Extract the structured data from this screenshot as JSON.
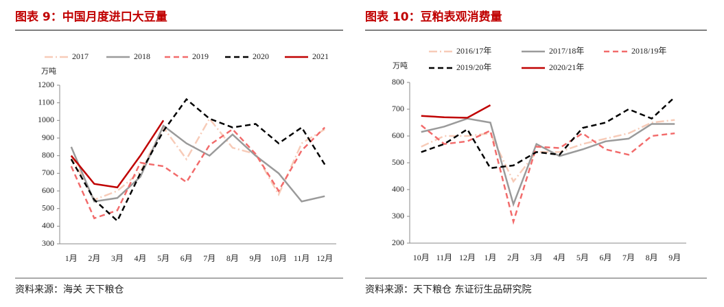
{
  "chart_data": [
    {
      "type": "line",
      "title": "图表 9：中国月度进口大豆量",
      "y_label": "万吨",
      "source": "资料来源：海关 天下粮仓",
      "categories": [
        "1月",
        "2月",
        "3月",
        "4月",
        "5月",
        "6月",
        "7月",
        "8月",
        "9月",
        "10月",
        "11月",
        "12月"
      ],
      "ylim": [
        300,
        1200
      ],
      "yticks": [
        300,
        400,
        500,
        600,
        700,
        800,
        900,
        1000,
        1100,
        1200
      ],
      "series": [
        {
          "name": "2017",
          "color": "#f7cbb8",
          "line_style": "dash-dot",
          "values": [
            800,
            550,
            600,
            710,
            960,
            780,
            1010,
            845,
            810,
            580,
            870,
            950
          ]
        },
        {
          "name": "2018",
          "color": "#9a9a9a",
          "line_style": "solid",
          "values": [
            850,
            540,
            560,
            680,
            970,
            870,
            800,
            920,
            800,
            700,
            540,
            570
          ]
        },
        {
          "name": "2019",
          "color": "#f26b6b",
          "line_style": "dash",
          "values": [
            740,
            445,
            490,
            760,
            740,
            650,
            860,
            950,
            810,
            600,
            830,
            960
          ]
        },
        {
          "name": "2020",
          "color": "#000000",
          "line_style": "dash",
          "values": [
            780,
            550,
            430,
            700,
            940,
            1120,
            1010,
            960,
            980,
            870,
            960,
            750
          ]
        },
        {
          "name": "2021",
          "color": "#c00000",
          "line_style": "solid",
          "values": [
            800,
            640,
            620,
            800,
            1000,
            null,
            null,
            null,
            null,
            null,
            null,
            null
          ]
        }
      ]
    },
    {
      "type": "line",
      "title": "图表 10：豆粕表观消费量",
      "y_label": "万吨",
      "source": "资料来源：天下粮仓 东证衍生品研究院",
      "categories": [
        "10月",
        "11月",
        "12月",
        "1月",
        "2月",
        "3月",
        "4月",
        "5月",
        "6月",
        "7月",
        "8月",
        "9月"
      ],
      "ylim": [
        200,
        800
      ],
      "yticks": [
        200,
        300,
        400,
        500,
        600,
        700,
        800
      ],
      "series": [
        {
          "name": "2016/17年",
          "color": "#f7cbb8",
          "line_style": "dash-dot",
          "values": [
            560,
            600,
            600,
            610,
            430,
            540,
            540,
            570,
            590,
            610,
            650,
            660
          ]
        },
        {
          "name": "2017/18年",
          "color": "#9a9a9a",
          "line_style": "solid",
          "values": [
            615,
            635,
            665,
            650,
            345,
            570,
            525,
            550,
            580,
            590,
            645,
            645
          ]
        },
        {
          "name": "2018/19年",
          "color": "#f26b6b",
          "line_style": "dash",
          "values": [
            640,
            570,
            580,
            620,
            280,
            560,
            555,
            610,
            550,
            530,
            600,
            610
          ]
        },
        {
          "name": "2019/20年",
          "color": "#000000",
          "line_style": "dash",
          "values": [
            540,
            570,
            625,
            480,
            490,
            540,
            530,
            630,
            650,
            700,
            665,
            745
          ]
        },
        {
          "name": "2020/21年",
          "color": "#c00000",
          "line_style": "solid",
          "values": [
            675,
            670,
            668,
            715,
            null,
            null,
            null,
            null,
            null,
            null,
            null,
            null
          ]
        }
      ]
    }
  ]
}
